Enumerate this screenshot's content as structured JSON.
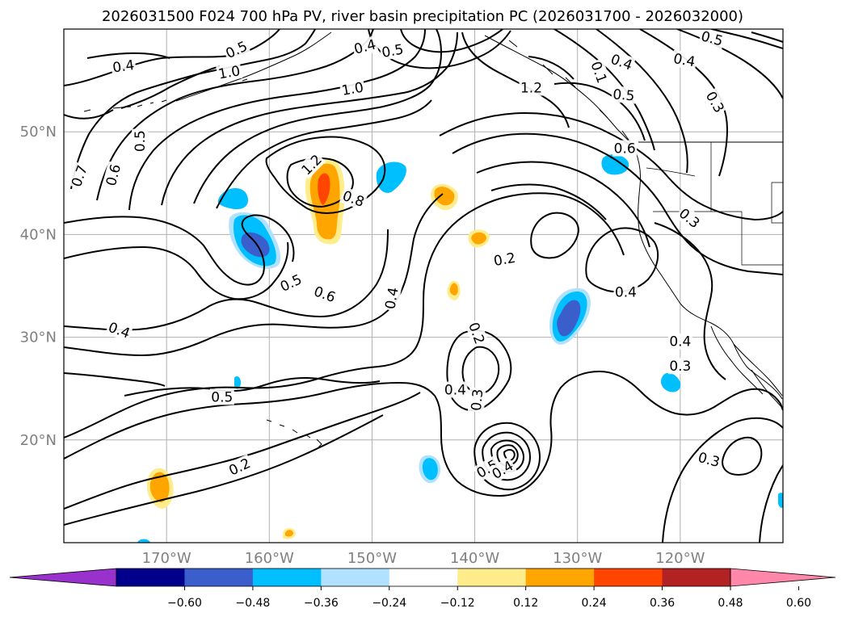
{
  "chart_data": {
    "type": "contour",
    "title": "2026031500 F024 700 hPa PV, river basin precipitation PC (2026031700 - 2026032000)",
    "xlabel": "",
    "ylabel": "",
    "lon_range": [
      -180,
      -110
    ],
    "lat_range": [
      10,
      60
    ],
    "x_ticks": [
      -170,
      -160,
      -150,
      -140,
      -130,
      -120
    ],
    "x_tick_labels": [
      "170°W",
      "160°W",
      "150°W",
      "140°W",
      "130°W",
      "120°W"
    ],
    "y_ticks": [
      20,
      30,
      40,
      50
    ],
    "y_tick_labels": [
      "20°N",
      "30°N",
      "40°N",
      "50°N"
    ],
    "grid": true,
    "contour_labels": [
      {
        "text": "0.4",
        "lon": -174.2,
        "lat": 56.4,
        "angle": -8
      },
      {
        "text": "0.5",
        "lon": -163.2,
        "lat": 58.0,
        "angle": -25
      },
      {
        "text": "1.0",
        "lon": -163.9,
        "lat": 55.8,
        "angle": -10
      },
      {
        "text": "1.0",
        "lon": -151.9,
        "lat": 54.2,
        "angle": -10
      },
      {
        "text": "0.4",
        "lon": -150.7,
        "lat": 58.3,
        "angle": -15
      },
      {
        "text": "0.5",
        "lon": -148.0,
        "lat": 57.9,
        "angle": -10
      },
      {
        "text": "1.2",
        "lon": -134.5,
        "lat": 54.3,
        "angle": 0
      },
      {
        "text": "0.1",
        "lon": -127.9,
        "lat": 55.8,
        "angle": 70
      },
      {
        "text": "0.5",
        "lon": -125.5,
        "lat": 53.6,
        "angle": 5
      },
      {
        "text": "0.4",
        "lon": -125.7,
        "lat": 56.8,
        "angle": 20
      },
      {
        "text": "0.4",
        "lon": -119.6,
        "lat": 57.0,
        "angle": 10
      },
      {
        "text": "0.5",
        "lon": -116.9,
        "lat": 59.1,
        "angle": 15
      },
      {
        "text": "0.3",
        "lon": -116.6,
        "lat": 52.9,
        "angle": 60
      },
      {
        "text": "0.7",
        "lon": -178.5,
        "lat": 45.7,
        "angle": -70
      },
      {
        "text": "0.6",
        "lon": -175.2,
        "lat": 45.8,
        "angle": -75
      },
      {
        "text": "0.5",
        "lon": -172.6,
        "lat": 49.1,
        "angle": -90
      },
      {
        "text": "1.2",
        "lon": -155.9,
        "lat": 46.8,
        "angle": -45
      },
      {
        "text": "0.8",
        "lon": -151.8,
        "lat": 43.5,
        "angle": 20
      },
      {
        "text": "0.6",
        "lon": -125.4,
        "lat": 48.4,
        "angle": 0
      },
      {
        "text": "0.3",
        "lon": -119.1,
        "lat": 41.6,
        "angle": 40
      },
      {
        "text": "0.2",
        "lon": -137.1,
        "lat": 37.6,
        "angle": -10
      },
      {
        "text": "0.4",
        "lon": -125.3,
        "lat": 34.4,
        "angle": 0
      },
      {
        "text": "0.5",
        "lon": -157.9,
        "lat": 35.3,
        "angle": -25
      },
      {
        "text": "0.6",
        "lon": -154.6,
        "lat": 34.2,
        "angle": 20
      },
      {
        "text": "0.4",
        "lon": -148.1,
        "lat": 33.8,
        "angle": -80
      },
      {
        "text": "0.2",
        "lon": -139.8,
        "lat": 30.4,
        "angle": 70
      },
      {
        "text": "0.4",
        "lon": -174.6,
        "lat": 30.7,
        "angle": 20
      },
      {
        "text": "0.4",
        "lon": -120.0,
        "lat": 29.6,
        "angle": 0
      },
      {
        "text": "0.3",
        "lon": -120.0,
        "lat": 27.2,
        "angle": 0
      },
      {
        "text": "0.4",
        "lon": -141.9,
        "lat": 24.9,
        "angle": 0
      },
      {
        "text": "0.3",
        "lon": -139.8,
        "lat": 23.9,
        "angle": -85
      },
      {
        "text": "0.5",
        "lon": -164.6,
        "lat": 24.2,
        "angle": 0
      },
      {
        "text": "0.2",
        "lon": -162.9,
        "lat": 17.4,
        "angle": -25
      },
      {
        "text": "0.5",
        "lon": -138.8,
        "lat": 17.2,
        "angle": -30
      },
      {
        "text": "0.4",
        "lon": -137.3,
        "lat": 17.1,
        "angle": -30
      },
      {
        "text": "0.3",
        "lon": -117.2,
        "lat": 18.1,
        "angle": 15
      }
    ],
    "colorbar": {
      "ticks": [
        "−0.60",
        "−0.48",
        "−0.36",
        "−0.24",
        "−0.12",
        "0.12",
        "0.24",
        "0.36",
        "0.48",
        "0.60"
      ],
      "colors": [
        "#9932cc",
        "#00008b",
        "#3a5fcd",
        "#00bfff",
        "#b0e2ff",
        "#ffffff",
        "#ffec8b",
        "#ffa500",
        "#ff4500",
        "#b22222",
        "#ff88aa"
      ],
      "extend": "both"
    }
  }
}
